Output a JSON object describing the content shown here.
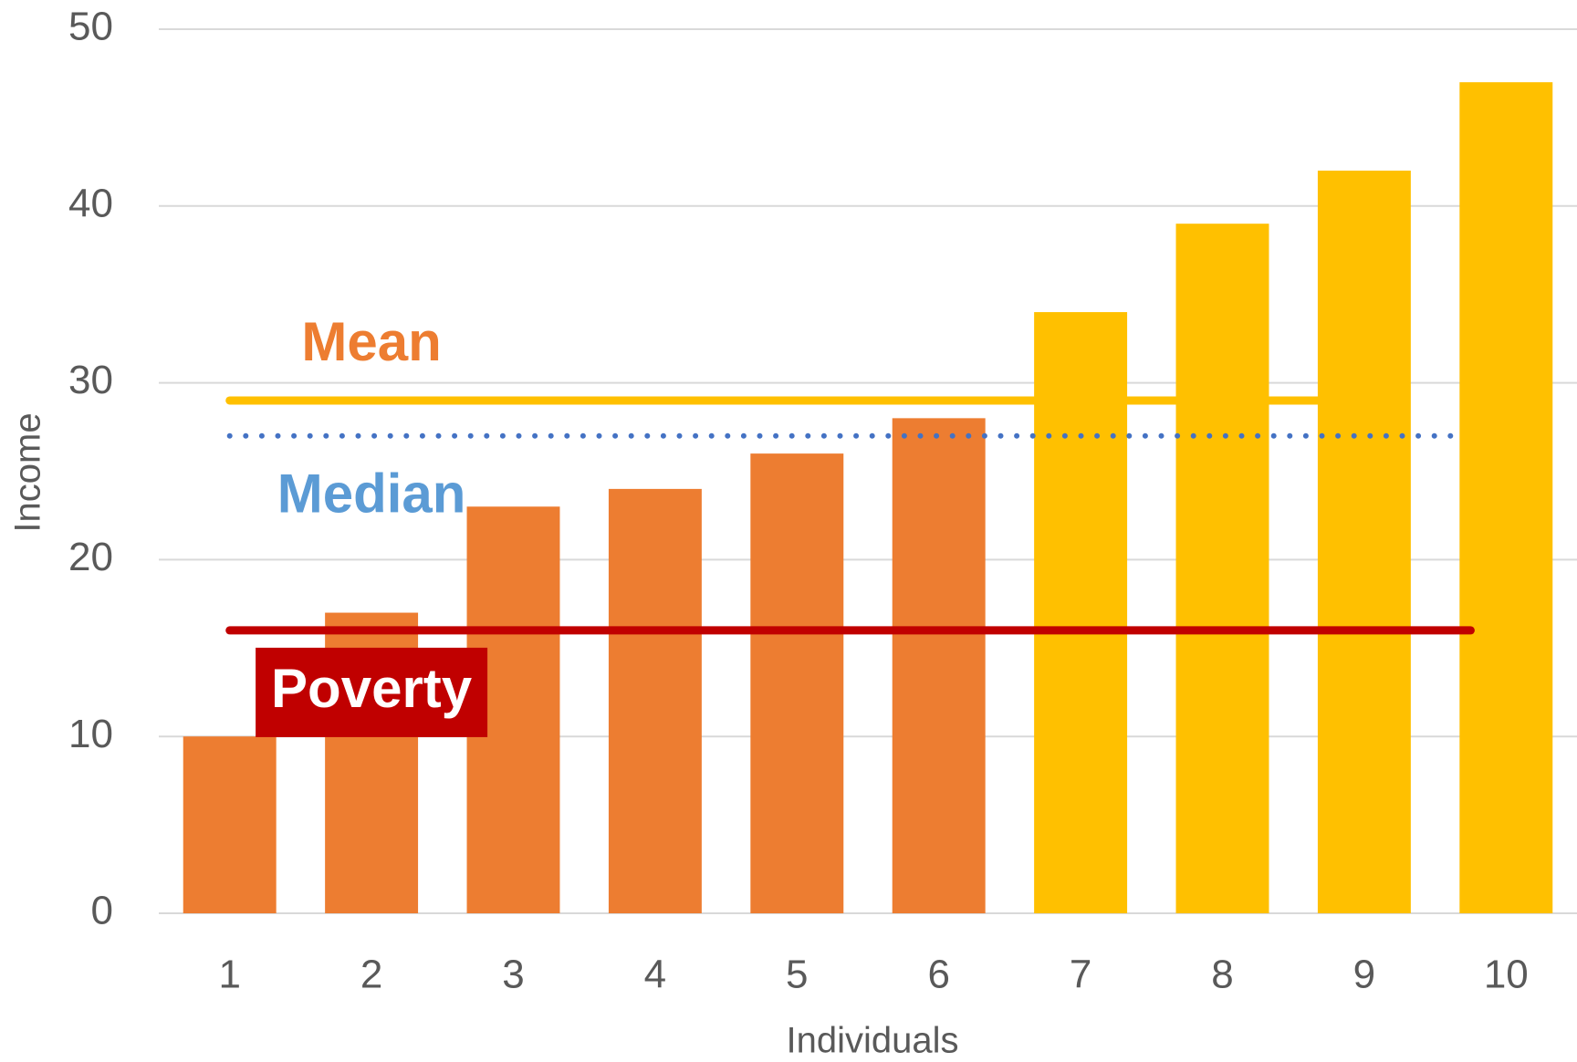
{
  "chart_data": {
    "type": "bar",
    "x_label": "Individuals",
    "y_label": "Income",
    "categories": [
      "1",
      "2",
      "3",
      "4",
      "5",
      "6",
      "7",
      "8",
      "9",
      "10"
    ],
    "values": [
      10,
      17,
      23,
      24,
      26,
      28,
      34,
      39,
      42,
      47
    ],
    "colors": [
      "#ED7D31",
      "#ED7D31",
      "#ED7D31",
      "#ED7D31",
      "#ED7D31",
      "#ED7D31",
      "#FFC000",
      "#FFC000",
      "#FFC000",
      "#FFC000"
    ],
    "ylim": [
      0,
      50
    ],
    "yticks": [
      0,
      10,
      20,
      30,
      40,
      50
    ],
    "grid": true,
    "reference_lines": [
      {
        "label": "Mean",
        "value": 29,
        "color": "#FFC000",
        "style": "solid",
        "label_color": "#ED7D31"
      },
      {
        "label": "Median",
        "value": 27,
        "color": "#4472C4",
        "style": "dotted",
        "label_color": "#5B9BD5"
      },
      {
        "label": "Poverty",
        "value": 16,
        "color": "#C00000",
        "style": "solid",
        "label_color": "#FFFFFF",
        "label_box": "#C00000"
      }
    ]
  }
}
